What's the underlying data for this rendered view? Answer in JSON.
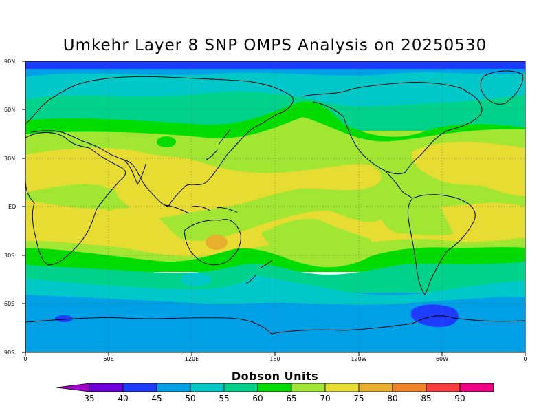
{
  "title": "Umkehr Layer 8 SNP OMPS Analysis on 20250530",
  "map": {
    "lat_labels": [
      "90N",
      "60N",
      "30N",
      "EQ",
      "30S",
      "60S",
      "90S"
    ],
    "lon_labels": [
      "0",
      "60E",
      "120E",
      "180",
      "120W",
      "60W",
      "0"
    ],
    "grid": true,
    "projection": "cylindrical equidistant, 0 to 360 longitude"
  },
  "colorbar": {
    "title": "Dobson Units",
    "labels": [
      "35",
      "40",
      "45",
      "50",
      "55",
      "60",
      "65",
      "70",
      "75",
      "80",
      "85",
      "90"
    ],
    "colors": [
      "#a000c8",
      "#6e00dc",
      "#1e3cff",
      "#00a0e6",
      "#00c8c8",
      "#00d28c",
      "#00dc00",
      "#a0e632",
      "#e6dc32",
      "#e6af2d",
      "#f08228",
      "#fa3c3c",
      "#f00082",
      "#c80078"
    ]
  }
}
